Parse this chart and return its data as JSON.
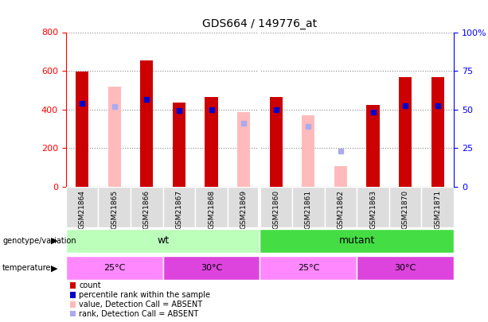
{
  "title": "GDS664 / 149776_at",
  "samples": [
    "GSM21864",
    "GSM21865",
    "GSM21866",
    "GSM21867",
    "GSM21868",
    "GSM21869",
    "GSM21860",
    "GSM21861",
    "GSM21862",
    "GSM21863",
    "GSM21870",
    "GSM21871"
  ],
  "count": [
    595,
    0,
    655,
    437,
    463,
    0,
    463,
    0,
    0,
    423,
    567,
    567
  ],
  "absent_value": [
    0,
    520,
    0,
    0,
    0,
    385,
    0,
    370,
    107,
    0,
    0,
    0
  ],
  "percentile_rank": [
    430,
    0,
    453,
    393,
    400,
    0,
    400,
    0,
    0,
    385,
    420,
    420
  ],
  "absent_rank": [
    0,
    415,
    0,
    0,
    0,
    330,
    0,
    313,
    183,
    0,
    0,
    0
  ],
  "ylim_left": [
    0,
    800
  ],
  "ylim_right": [
    0,
    100
  ],
  "yticks_left": [
    0,
    200,
    400,
    600,
    800
  ],
  "yticks_right": [
    0,
    25,
    50,
    75,
    100
  ],
  "yticklabels_right": [
    "0",
    "25",
    "50",
    "75",
    "100%"
  ],
  "color_count": "#cc0000",
  "color_absent_value": "#ffbbbb",
  "color_percentile": "#0000cc",
  "color_absent_rank": "#aaaaee",
  "color_wt": "#bbffbb",
  "color_mutant": "#44dd44",
  "color_temp_25": "#ff88ff",
  "color_temp_30": "#dd44dd",
  "background_plot": "#ffffff",
  "bar_width": 0.4
}
